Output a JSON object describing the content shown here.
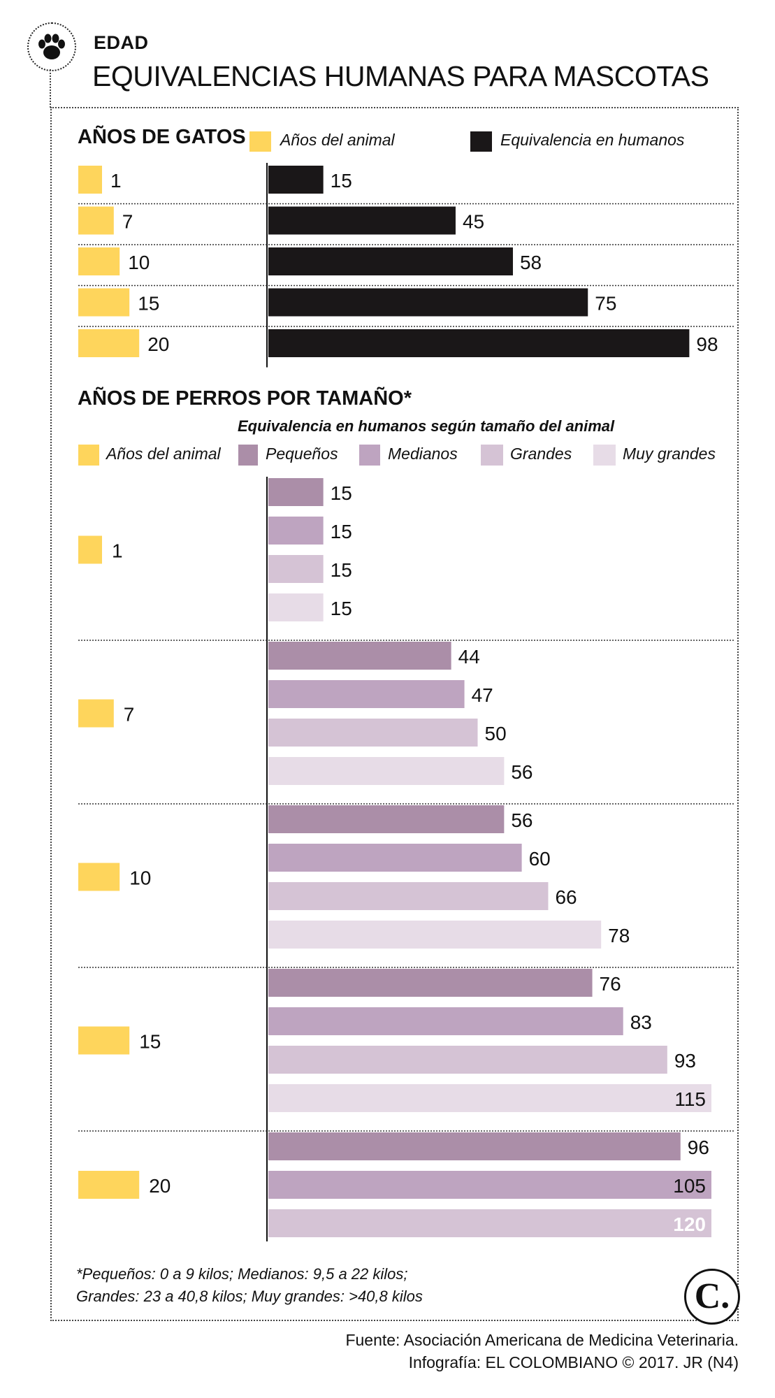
{
  "header": {
    "section": "EDAD",
    "title": "EQUIVALENCIAS HUMANAS PARA MASCOTAS",
    "icon": "paw-icon"
  },
  "colors": {
    "animal": "#fed55c",
    "human_cats": "#1a1718",
    "pequenos": "#ab8ea8",
    "medianos": "#bea4c0",
    "grandes": "#d5c3d5",
    "muy_grandes": "#e7dce7"
  },
  "chart_data": [
    {
      "type": "bar",
      "title": "AÑOS DE GATOS",
      "legend": [
        "Años del animal",
        "Equivalencia en humanos"
      ],
      "categories": [
        "1",
        "7",
        "10",
        "15",
        "20"
      ],
      "series": [
        {
          "name": "Años del animal",
          "values": [
            1,
            7,
            10,
            15,
            20
          ]
        },
        {
          "name": "Equivalencia en humanos",
          "values": [
            15,
            45,
            58,
            75,
            98
          ]
        }
      ]
    },
    {
      "type": "bar",
      "title": "AÑOS DE PERROS POR TAMAÑO*",
      "subtitle": "Equivalencia en humanos según tamaño del animal",
      "legend": [
        "Años del animal",
        "Pequeños",
        "Medianos",
        "Grandes",
        "Muy grandes"
      ],
      "categories": [
        "1",
        "7",
        "10",
        "15",
        "20"
      ],
      "series": [
        {
          "name": "Años del animal",
          "values": [
            1,
            7,
            10,
            15,
            20
          ]
        },
        {
          "name": "Pequeños",
          "values": [
            15,
            44,
            56,
            76,
            96
          ]
        },
        {
          "name": "Medianos",
          "values": [
            15,
            47,
            60,
            83,
            105
          ]
        },
        {
          "name": "Grandes",
          "values": [
            15,
            50,
            66,
            93,
            120
          ]
        },
        {
          "name": "Muy grandes",
          "values": [
            15,
            56,
            78,
            115,
            null
          ]
        }
      ]
    }
  ],
  "footnote": {
    "line1": "*Pequeños: 0 a 9 kilos; Medianos: 9,5 a 22 kilos;",
    "line2": "Grandes: 23 a 40,8 kilos; Muy grandes: >40,8 kilos"
  },
  "logo": "C.",
  "source": {
    "line1": "Fuente: Asociación Americana de Medicina Veterinaria.",
    "line2": "Infografía: EL COLOMBIANO © 2017. JR (N4)"
  }
}
